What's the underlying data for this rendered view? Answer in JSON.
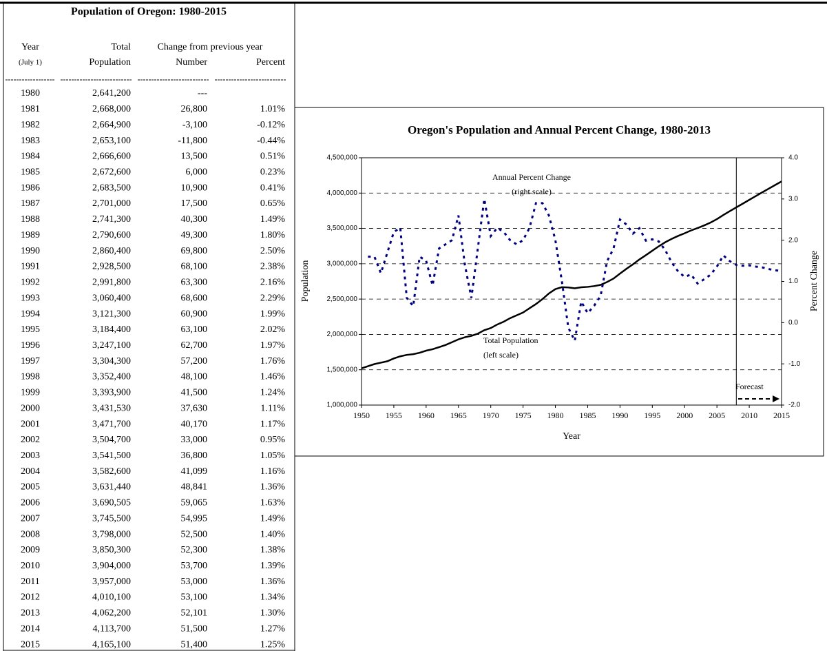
{
  "table": {
    "title": "Population of Oregon: 1980-2015",
    "header": [
      [
        "Year",
        "Total",
        "Change from previous year"
      ],
      [
        "(July 1)",
        "Population",
        "Number",
        "Percent"
      ]
    ],
    "rows": [
      [
        "1980",
        "2,641,200",
        "---"
      ],
      [
        "1981",
        "2,668,000",
        "26,800",
        "1.01%"
      ],
      [
        "1982",
        "2,664,900",
        "-3,100",
        "-0.12%"
      ],
      [
        "1983",
        "2,653,100",
        "-11,800",
        "-0.44%"
      ],
      [
        "1984",
        "2,666,600",
        "13,500",
        "0.51%"
      ],
      [
        "1985",
        "2,672,600",
        "6,000",
        "0.23%"
      ],
      [
        "1986",
        "2,683,500",
        "10,900",
        "0.41%"
      ],
      [
        "1987",
        "2,701,000",
        "17,500",
        "0.65%"
      ],
      [
        "1988",
        "2,741,300",
        "40,300",
        "1.49%"
      ],
      [
        "1989",
        "2,790,600",
        "49,300",
        "1.80%"
      ],
      [
        "1990",
        "2,860,400",
        "69,800",
        "2.50%"
      ],
      [
        "1991",
        "2,928,500",
        "68,100",
        "2.38%"
      ],
      [
        "1992",
        "2,991,800",
        "63,300",
        "2.16%"
      ],
      [
        "1993",
        "3,060,400",
        "68,600",
        "2.29%"
      ],
      [
        "1994",
        "3,121,300",
        "60,900",
        "1.99%"
      ],
      [
        "1995",
        "3,184,400",
        "63,100",
        "2.02%"
      ],
      [
        "1996",
        "3,247,100",
        "62,700",
        "1.97%"
      ],
      [
        "1997",
        "3,304,300",
        "57,200",
        "1.76%"
      ],
      [
        "1998",
        "3,352,400",
        "48,100",
        "1.46%"
      ],
      [
        "1999",
        "3,393,900",
        "41,500",
        "1.24%"
      ],
      [
        "2000",
        "3,431,530",
        "37,630",
        "1.11%"
      ],
      [
        "2001",
        "3,471,700",
        "40,170",
        "1.17%"
      ],
      [
        "2002",
        "3,504,700",
        "33,000",
        "0.95%"
      ],
      [
        "2003",
        "3,541,500",
        "36,800",
        "1.05%"
      ],
      [
        "2004",
        "3,582,600",
        "41,099",
        "1.16%"
      ],
      [
        "2005",
        "3,631,440",
        "48,841",
        "1.36%"
      ],
      [
        "2006",
        "3,690,505",
        "59,065",
        "1.63%"
      ],
      [
        "2007",
        "3,745,500",
        "54,995",
        "1.49%"
      ],
      [
        "2008",
        "3,798,000",
        "52,500",
        "1.40%"
      ],
      [
        "2009",
        "3,850,300",
        "52,300",
        "1.38%"
      ],
      [
        "2010",
        "3,904,000",
        "53,700",
        "1.39%"
      ],
      [
        "2011",
        "3,957,000",
        "53,000",
        "1.36%"
      ],
      [
        "2012",
        "4,010,100",
        "53,100",
        "1.34%"
      ],
      [
        "2013",
        "4,062,200",
        "52,101",
        "1.30%"
      ],
      [
        "2014",
        "4,113,700",
        "51,500",
        "1.27%"
      ],
      [
        "2015",
        "4,165,100",
        "51,400",
        "1.25%"
      ]
    ]
  },
  "chart_data": {
    "type": "line",
    "title": "Oregon's Population and Annual Percent Change, 1980-2013",
    "xlabel": "Year",
    "ylabel": "Population",
    "y2label": "Percent Change",
    "annotations": [
      "Annual Percent  Change",
      "(right scale)",
      "Total Population",
      "(left scale)",
      "Forecast"
    ],
    "forecast_x": 2008,
    "x": [
      1950,
      1951,
      1952,
      1953,
      1954,
      1955,
      1956,
      1957,
      1958,
      1959,
      1960,
      1961,
      1962,
      1963,
      1964,
      1965,
      1966,
      1967,
      1968,
      1969,
      1970,
      1971,
      1972,
      1973,
      1974,
      1975,
      1976,
      1977,
      1978,
      1979,
      1980,
      1981,
      1982,
      1983,
      1984,
      1985,
      1986,
      1987,
      1988,
      1989,
      1990,
      1991,
      1992,
      1993,
      1994,
      1995,
      1996,
      1997,
      1998,
      1999,
      2000,
      2001,
      2002,
      2003,
      2004,
      2005,
      2006,
      2007,
      2008,
      2009,
      2010,
      2011,
      2012,
      2013,
      2014,
      2015
    ],
    "series": [
      {
        "name": "Total Population",
        "color": "#000000",
        "values": [
          1520000,
          1550000,
          1580000,
          1600000,
          1620000,
          1660000,
          1690000,
          1710000,
          1720000,
          1740000,
          1770000,
          1790000,
          1820000,
          1850000,
          1890000,
          1930000,
          1960000,
          1980000,
          2010000,
          2060000,
          2090000,
          2140000,
          2180000,
          2230000,
          2270000,
          2310000,
          2370000,
          2430000,
          2500000,
          2580000,
          2641200,
          2668000,
          2664900,
          2653100,
          2666600,
          2672600,
          2683500,
          2701000,
          2741300,
          2790600,
          2860400,
          2928500,
          2991800,
          3060400,
          3121300,
          3184400,
          3247100,
          3304300,
          3352400,
          3393900,
          3431530,
          3471700,
          3504700,
          3541500,
          3582600,
          3631440,
          3690505,
          3745500,
          3798000,
          3850300,
          3904000,
          3957000,
          4010100,
          4062200,
          4113700,
          4165100
        ]
      },
      {
        "name": "Annual Percent  Change",
        "color": "#000080",
        "axis": "y2",
        "values": [
          null,
          1.6,
          1.6,
          1.2,
          1.7,
          2.2,
          2.3,
          0.6,
          0.4,
          1.6,
          1.5,
          0.9,
          1.8,
          1.9,
          2.0,
          2.6,
          1.4,
          0.6,
          1.8,
          3.0,
          2.1,
          2.3,
          2.2,
          2.0,
          1.9,
          2.0,
          2.3,
          2.9,
          2.9,
          2.6,
          2.0,
          1.01,
          -0.12,
          -0.44,
          0.51,
          0.23,
          0.41,
          0.65,
          1.49,
          1.8,
          2.5,
          2.38,
          2.16,
          2.29,
          1.99,
          2.02,
          1.97,
          1.76,
          1.46,
          1.24,
          1.11,
          1.17,
          0.95,
          1.05,
          1.16,
          1.36,
          1.63,
          1.49,
          1.4,
          1.38,
          1.39,
          1.36,
          1.34,
          1.3,
          1.27,
          1.25
        ]
      }
    ],
    "xlim": [
      1950,
      2015
    ],
    "xticks": [
      1950,
      1955,
      1960,
      1965,
      1970,
      1975,
      1980,
      1985,
      1990,
      1995,
      2000,
      2005,
      2010,
      2015
    ],
    "ylim": [
      1000000,
      4500000
    ],
    "yticks": [
      {
        "value": 1000000,
        "label": "1,000,000"
      },
      {
        "value": 1500000,
        "label": "1,500,000"
      },
      {
        "value": 2000000,
        "label": "2,000,000"
      },
      {
        "value": 2500000,
        "label": "2,500,000"
      },
      {
        "value": 3000000,
        "label": "3,000,000"
      },
      {
        "value": 3500000,
        "label": "3,500,000"
      },
      {
        "value": 4000000,
        "label": "4,000,000"
      },
      {
        "value": 4500000,
        "label": "4,500,000"
      }
    ],
    "y2lim": [
      -2,
      4
    ],
    "y2ticks": [
      {
        "value": -2,
        "label": "-2.0"
      },
      {
        "value": -1,
        "label": "-1.0"
      },
      {
        "value": 0,
        "label": "0.0"
      },
      {
        "value": 1,
        "label": "1.0"
      },
      {
        "value": 2,
        "label": "2.0"
      },
      {
        "value": 3,
        "label": "3.0"
      },
      {
        "value": 4,
        "label": "4.0"
      }
    ],
    "grid": true
  }
}
